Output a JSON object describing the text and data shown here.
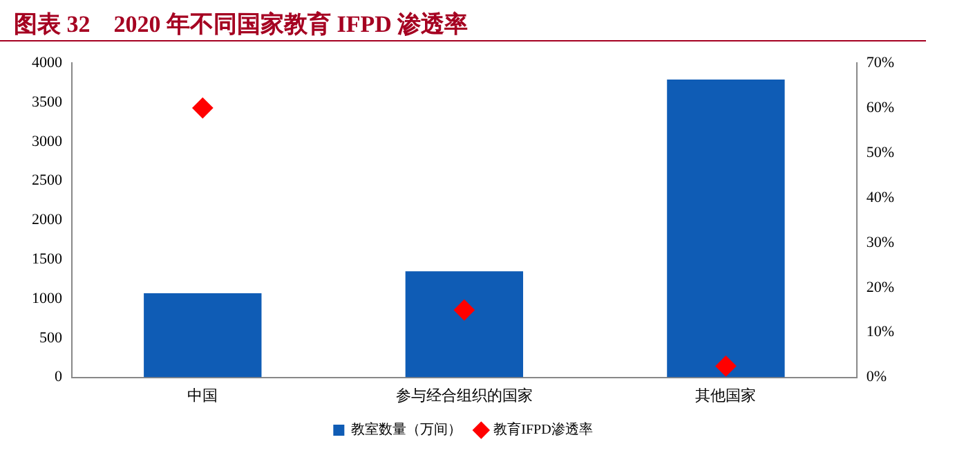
{
  "chart_data": {
    "type": "bar",
    "title": "图表 32　2020 年不同国家教育 IFPD 渗透率",
    "categories": [
      "中国",
      "参与经合组织的国家",
      "其他国家"
    ],
    "series": [
      {
        "name": "教室数量（万间）",
        "color": "#0f5cb5",
        "values": [
          1070,
          1350,
          3790
        ]
      },
      {
        "name": "教育IFPD渗透率",
        "type": "scatter",
        "axis": "y2",
        "color": "#ff0000",
        "marker": "diamond",
        "values": [
          60,
          15,
          2.5
        ]
      }
    ],
    "ylim": [
      0,
      4000
    ],
    "yticks": [
      0,
      500,
      1000,
      1500,
      2000,
      2500,
      3000,
      3500,
      4000
    ],
    "y2lim": [
      0,
      70
    ],
    "y2ticks": [
      {
        "value": 0,
        "label": "0%"
      },
      {
        "value": 10,
        "label": "10%"
      },
      {
        "value": 20,
        "label": "20%"
      },
      {
        "value": 30,
        "label": "30%"
      },
      {
        "value": 40,
        "label": "40%"
      },
      {
        "value": 50,
        "label": "50%"
      },
      {
        "value": 60,
        "label": "60%"
      },
      {
        "value": 70,
        "label": "70%"
      }
    ],
    "grid": false,
    "legend": "bottom"
  }
}
